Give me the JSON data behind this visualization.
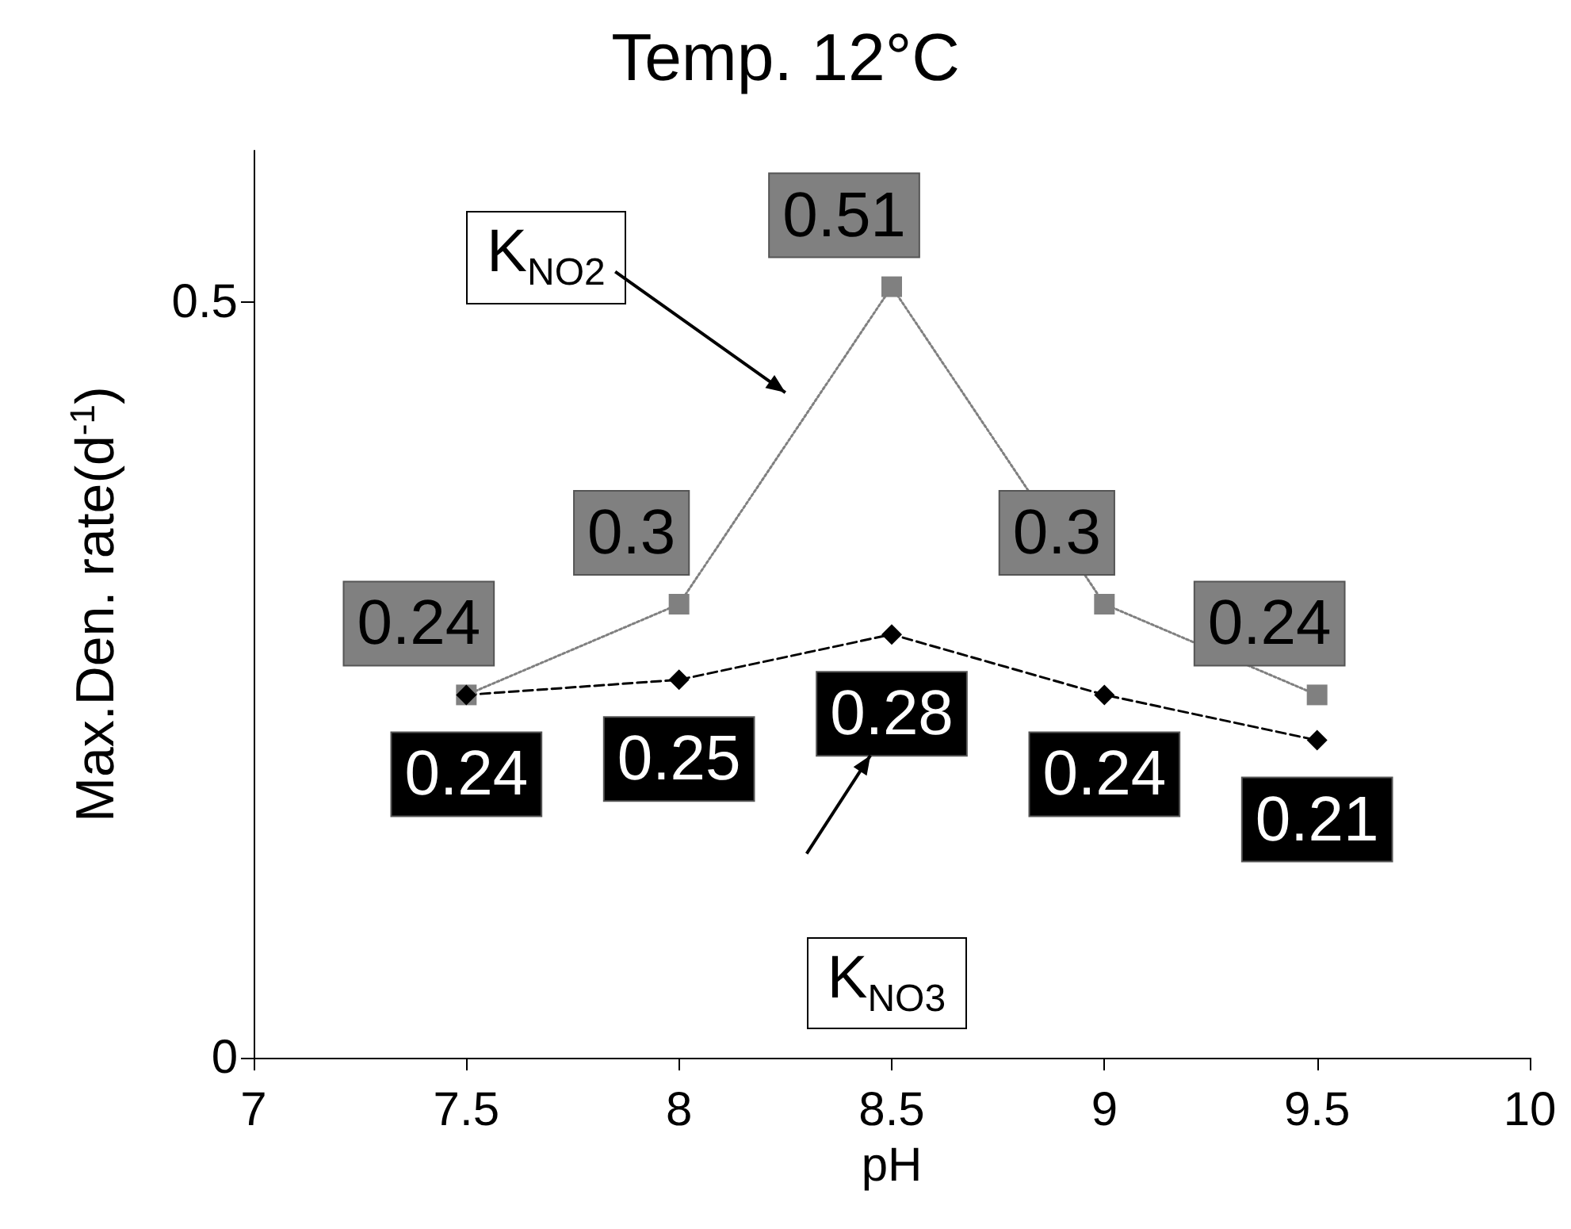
{
  "chart_data": {
    "type": "line",
    "title": "Temp. 12°C",
    "xlabel": "pH",
    "ylabel": "Max.Den. rate(d$^{-1}$)",
    "x": [
      7.5,
      8,
      8.5,
      9,
      9.5
    ],
    "xlim": [
      7,
      10
    ],
    "xticks": [
      7,
      7.5,
      8,
      8.5,
      9,
      9.5,
      10
    ],
    "ylim": [
      0,
      0.6
    ],
    "yticks": [
      0,
      0.5
    ],
    "grid": false,
    "series": [
      {
        "name": "K$_{NO2}$",
        "color": "#808080",
        "values": [
          0.24,
          0.3,
          0.51,
          0.3,
          0.24
        ],
        "value_labels": [
          "0.24",
          "0.3",
          "0.51",
          "0.3",
          "0.24"
        ],
        "marker": "square",
        "line_style": "dotted"
      },
      {
        "name": "K$_{NO3}$",
        "color": "#000000",
        "values": [
          0.24,
          0.25,
          0.28,
          0.24,
          0.21
        ],
        "value_labels": [
          "0.24",
          "0.25",
          "0.28",
          "0.24",
          "0.21"
        ],
        "marker": "diamond",
        "line_style": "dashed"
      }
    ]
  }
}
